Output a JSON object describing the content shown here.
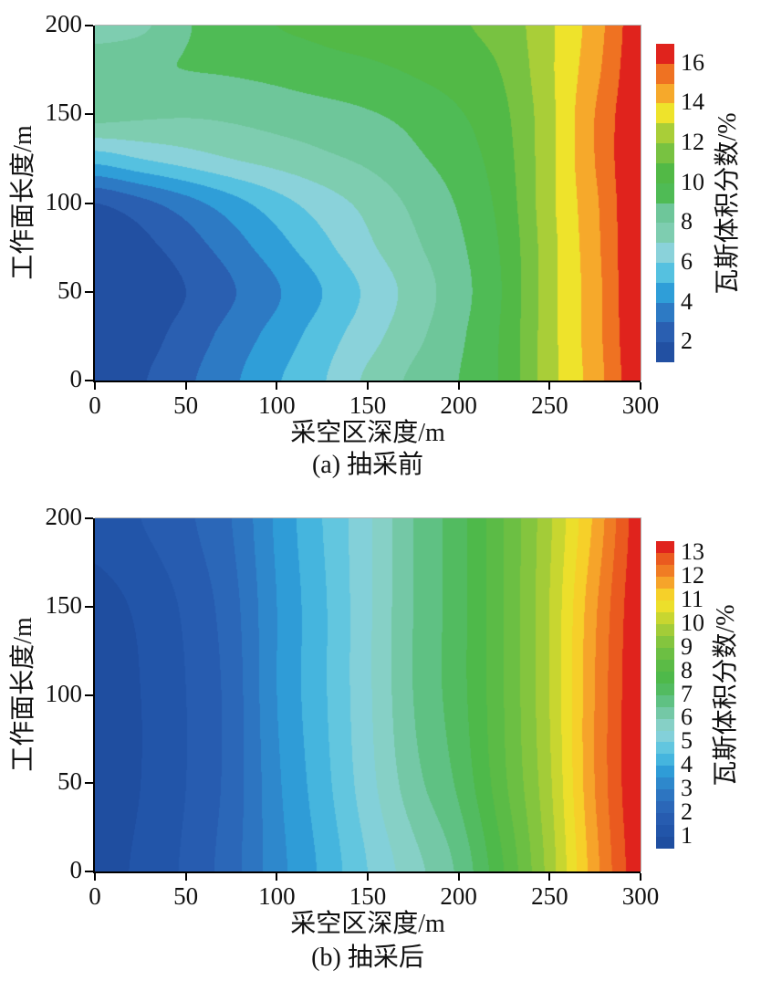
{
  "page": {
    "background": "#ffffff",
    "axis_color": "#000000",
    "frame_color": "#b3b3b3",
    "text_color": "#111111"
  },
  "chart_data": [
    {
      "type": "heatmap",
      "caption": "(a) 抽采前",
      "xlabel": "采空区深度/m",
      "ylabel": "工作面长度/m",
      "colorbar_label": "瓦斯体积分数/%",
      "x_range": [
        0,
        300
      ],
      "y_range": [
        0,
        200
      ],
      "x_ticks": [
        0,
        50,
        100,
        150,
        200,
        250,
        300
      ],
      "y_ticks": [
        0,
        50,
        100,
        150,
        200
      ],
      "colorbar_ticks": [
        2,
        4,
        6,
        8,
        10,
        12,
        14,
        16
      ],
      "levels": {
        "min": 1,
        "max": 17,
        "step": 1
      },
      "band_colors": [
        "#2250a2",
        "#2a5fb1",
        "#2d7ac4",
        "#2f9ed8",
        "#55c1e0",
        "#8ad2da",
        "#7ecdb0",
        "#6ec69a",
        "#4fbb55",
        "#52b946",
        "#78c241",
        "#a9ce38",
        "#eee32b",
        "#f6a92b",
        "#ef7222",
        "#e0231d"
      ],
      "grid_x": [
        0,
        25,
        50,
        75,
        100,
        125,
        150,
        175,
        200,
        225,
        250,
        275,
        300
      ],
      "grid_y": [
        0,
        25,
        50,
        75,
        100,
        125,
        150,
        175,
        200
      ],
      "values": [
        [
          1.4,
          1.9,
          2.8,
          3.8,
          4.9,
          5.9,
          7.2,
          8.2,
          9.0,
          10.2,
          12.6,
          14.5,
          16.8
        ],
        [
          1.3,
          1.6,
          2.4,
          3.4,
          4.4,
          5.5,
          6.6,
          7.7,
          8.8,
          10.2,
          12.6,
          14.6,
          16.9
        ],
        [
          1.1,
          1.4,
          2.0,
          2.9,
          3.9,
          5.0,
          6.2,
          7.4,
          8.6,
          10.1,
          12.6,
          14.6,
          17.0
        ],
        [
          1.3,
          1.7,
          2.5,
          3.5,
          4.6,
          5.7,
          6.8,
          7.8,
          8.8,
          10.2,
          12.6,
          14.7,
          17.0
        ],
        [
          2.0,
          2.7,
          3.6,
          4.6,
          5.6,
          6.5,
          7.3,
          8.2,
          9.1,
          10.4,
          12.7,
          14.8,
          17.0
        ],
        [
          5.4,
          6.0,
          6.5,
          7.0,
          7.4,
          7.8,
          8.2,
          8.8,
          9.5,
          10.6,
          12.7,
          15.0,
          17.0
        ],
        [
          8.4,
          8.2,
          8.1,
          8.2,
          8.4,
          8.6,
          8.9,
          9.3,
          9.9,
          10.8,
          12.7,
          15.0,
          16.9
        ],
        [
          8.6,
          8.9,
          9.0,
          9.1,
          9.3,
          9.6,
          9.8,
          10.1,
          10.5,
          11.1,
          12.8,
          14.7,
          16.8
        ],
        [
          7.6,
          7.8,
          8.9,
          9.5,
          10.0,
          10.2,
          10.4,
          10.6,
          10.9,
          11.4,
          12.8,
          14.5,
          16.7
        ]
      ]
    },
    {
      "type": "heatmap",
      "caption": "(b) 抽采后",
      "xlabel": "采空区深度/m",
      "ylabel": "工作面长度/m",
      "colorbar_label": "瓦斯体积分数/%",
      "x_range": [
        0,
        300
      ],
      "y_range": [
        0,
        200
      ],
      "x_ticks": [
        0,
        50,
        100,
        150,
        200,
        250,
        300
      ],
      "y_ticks": [
        0,
        50,
        100,
        150,
        200
      ],
      "colorbar_ticks": [
        1,
        2,
        3,
        4,
        5,
        6,
        7,
        8,
        9,
        10,
        11,
        12,
        13
      ],
      "levels": {
        "min": 0.5,
        "max": 13.5,
        "step": 0.5
      },
      "band_colors": [
        "#1f4ea0",
        "#2255a9",
        "#275cb0",
        "#2b67b8",
        "#2d75c1",
        "#2e88cc",
        "#2f9cd7",
        "#45b5de",
        "#62c6df",
        "#83d0d9",
        "#86d0c6",
        "#74c8a6",
        "#5fc183",
        "#52bb60",
        "#4eb94a",
        "#5bbb46",
        "#6cbf43",
        "#84c53e",
        "#a3cc38",
        "#c8d630",
        "#ecdf2b",
        "#f6d029",
        "#f6a42a",
        "#f07c24",
        "#ea5a1f",
        "#e0231d"
      ],
      "grid_x": [
        0,
        25,
        50,
        75,
        100,
        125,
        150,
        175,
        200,
        225,
        250,
        275,
        300
      ],
      "grid_y": [
        0,
        50,
        100,
        150,
        200
      ],
      "values": [
        [
          0.8,
          1.1,
          1.6,
          2.3,
          3.3,
          4.1,
          5.0,
          5.8,
          6.6,
          8.0,
          9.7,
          11.8,
          13.35
        ],
        [
          0.7,
          1.0,
          1.5,
          2.2,
          3.4,
          4.3,
          5.3,
          6.3,
          7.1,
          8.4,
          9.9,
          12.0,
          13.45
        ],
        [
          0.7,
          1.0,
          1.5,
          2.2,
          3.5,
          4.4,
          5.4,
          6.5,
          7.3,
          8.5,
          10.0,
          12.0,
          13.45
        ],
        [
          0.8,
          1.1,
          1.6,
          2.3,
          3.5,
          4.4,
          5.4,
          6.5,
          7.3,
          8.5,
          10.0,
          11.9,
          13.4
        ],
        [
          1.2,
          1.5,
          1.9,
          2.5,
          3.6,
          4.5,
          5.4,
          6.5,
          7.3,
          8.5,
          9.9,
          11.6,
          13.3
        ]
      ]
    }
  ]
}
